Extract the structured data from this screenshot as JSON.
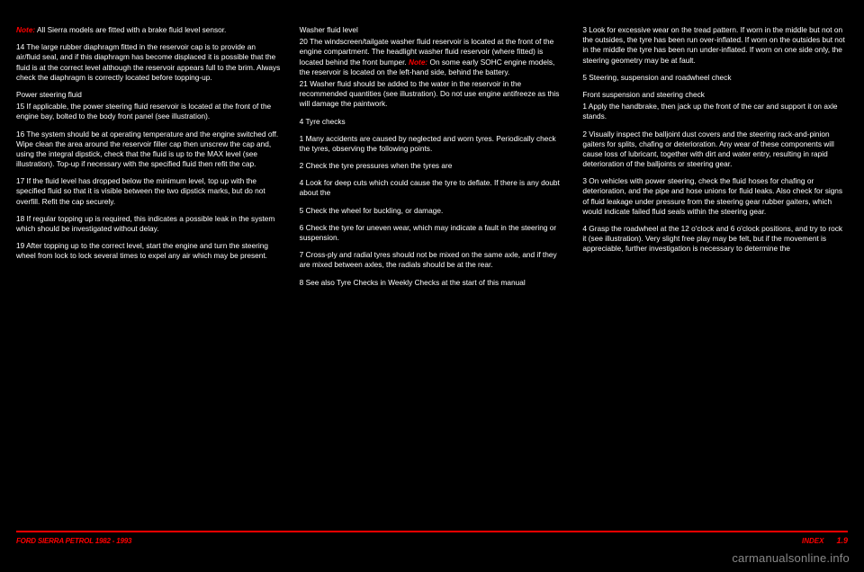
{
  "col1": {
    "note": "Note:",
    "noteText": " All Sierra models are fitted with a brake fluid level sensor.",
    "numbered1": "14 The large rubber diaphragm fitted in the reservoir cap is to provide an air/fluid seal, and if this diaphragm has become displaced it is possible that the fluid is at the correct level although the reservoir appears full to the brim. Always check the diaphragm is correctly located before topping-up.",
    "power": "Power steering fluid",
    "numbered15": "15 If applicable, the power steering fluid reservoir is located at the front of the engine bay, bolted to the body front panel (see illustration).",
    "numbered16": "16 The system should be at operating temperature and the engine switched off. Wipe clean the area around the reservoir filler cap then unscrew the cap and, using the integral dipstick, check that the fluid is up to the MAX level (see illustration). Top-up if necessary with the specified fluid then refit the cap.",
    "numbered17": "17 If the fluid level has dropped below the minimum level, top up with the specified fluid so that it is visible between the two dipstick marks, but do not overfill. Refit the cap securely.",
    "numbered18": "18 If regular topping up is required, this indicates a possible leak in the system which should be investigated without delay.",
    "numbered19": "19 After topping up to the correct level, start the engine and turn the steering wheel from lock to lock several times to expel any air which may be present."
  },
  "col2": {
    "washer": "Washer fluid level",
    "numbered20_a": "20 The windscreen/tailgate washer fluid reservoir is located at the front of the engine compartment. The headlight washer fluid reservoir (where fitted) is located behind the front bumper.",
    "note": "Note:",
    "noteText": " On some early SOHC engine models, the reservoir is located on the left-hand side, behind the battery.",
    "numbered21": "21 Washer fluid should be added to the water in the reservoir in the recommended quantities (see illustration). Do not use engine antifreeze as this will damage the paintwork.",
    "section4": "4 Tyre checks",
    "numbered1": "1 Many accidents are caused by neglected and worn tyres. Periodically check the tyres, observing the following points.",
    "numbered2": "2 Check the tyre pressures when the tyres are",
    "numbered4": "4 Look for deep cuts which could cause the tyre to deflate. If there is any doubt about the",
    "numbered5": "5 Check the wheel for buckling, or damage.",
    "numbered6": "6 Check the tyre for uneven wear, which may indicate a fault in the steering or suspension.",
    "numbered7": "7 Cross-ply and radial tyres should not be mixed on the same axle, and if they are mixed between axles, the radials should be at the rear.",
    "numbered8": "8 See also Tyre Checks in Weekly Checks at the start of this manual"
  },
  "col3": {
    "numbered3": "3 Look for excessive wear on the tread pattern. If worn in the middle but not on the outsides, the tyre has been run over-inflated. If worn on the outsides but not in the middle the tyre has been run under-inflated. If worn on one side only, the steering geometry may be at fault.",
    "section5": "5 Steering, suspension and roadwheel check",
    "frontCheck": "Front suspension and steering check",
    "numbered1": "1 Apply the handbrake, then jack up the front of the car and support it on axle stands.",
    "numbered2": "2 Visually inspect the balljoint dust covers and the steering rack-and-pinion gaiters for splits, chafing or deterioration. Any wear of these components will cause loss of lubricant, together with dirt and water entry, resulting in rapid deterioration of the balljoints or steering gear.",
    "numbered3b": "3 On vehicles with power steering, check the fluid hoses for chafing or deterioration, and the pipe and hose unions for fluid leaks. Also check for signs of fluid leakage under pressure from the steering gear rubber gaiters, which would indicate failed fluid seals within the steering gear.",
    "numbered4b": "4 Grasp the roadwheel at the 12 o'clock and 6 o'clock positions, and try to rock it (see illustration). Very slight free play may be felt, but if the movement is appreciable, further investigation is necessary to determine the"
  },
  "footer": {
    "left": "FORD SIERRA PETROL 1982 - 1993",
    "rightLabel": "INDEX",
    "pageNum": "1.9"
  },
  "watermark": "carmanualsonline.info"
}
